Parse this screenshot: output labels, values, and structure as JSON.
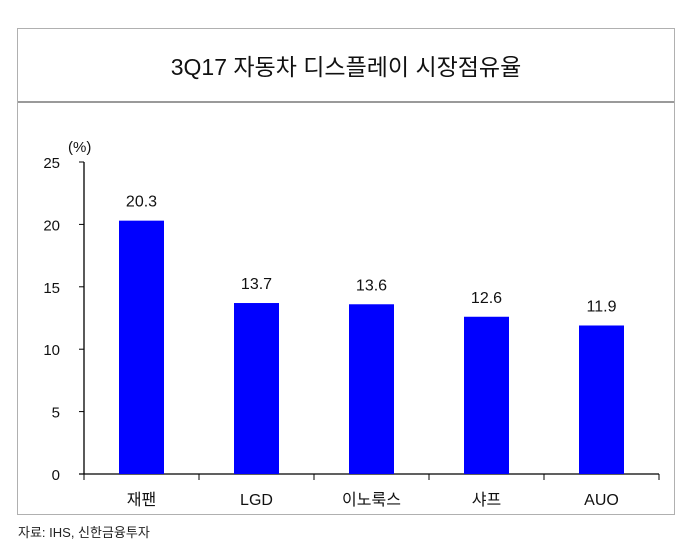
{
  "chart_data": {
    "type": "bar",
    "title": "3Q17 자동차 디스플레이 시장점유율",
    "unit_label": "(%)",
    "categories": [
      "재팬",
      "LGD",
      "이노룩스",
      "샤프",
      "AUO"
    ],
    "values": [
      20.3,
      13.7,
      13.6,
      12.6,
      11.9
    ],
    "value_labels": [
      "20.3",
      "13.7",
      "13.6",
      "12.6",
      "11.9"
    ],
    "ylim": [
      0,
      25
    ],
    "yticks": [
      "0",
      "5",
      "10",
      "15",
      "20",
      "25"
    ],
    "grid": false,
    "bar_color": "#0000ff"
  },
  "source": "자료: IHS, 신한금융투자"
}
